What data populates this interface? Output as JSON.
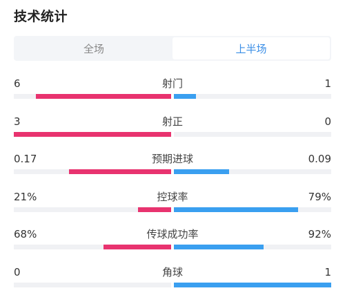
{
  "header": {
    "title": "技术统计"
  },
  "tabs": [
    {
      "label": "全场",
      "active": false
    },
    {
      "label": "上半场",
      "active": true
    }
  ],
  "colors": {
    "home": "#e8336f",
    "away": "#3a9ff0",
    "track": "#f0f1f4"
  },
  "stats": [
    {
      "label": "射门",
      "home": "6",
      "away": "1",
      "home_fill": 0.86,
      "away_fill": 0.14
    },
    {
      "label": "射正",
      "home": "3",
      "away": "0",
      "home_fill": 1.0,
      "away_fill": 0.0
    },
    {
      "label": "预期进球",
      "home": "0.17",
      "away": "0.09",
      "home_fill": 0.65,
      "away_fill": 0.35
    },
    {
      "label": "控球率",
      "home": "21%",
      "away": "79%",
      "home_fill": 0.21,
      "away_fill": 0.79
    },
    {
      "label": "传球成功率",
      "home": "68%",
      "away": "92%",
      "home_fill": 0.43,
      "away_fill": 0.57
    },
    {
      "label": "角球",
      "home": "0",
      "away": "1",
      "home_fill": 0.0,
      "away_fill": 1.0
    }
  ]
}
